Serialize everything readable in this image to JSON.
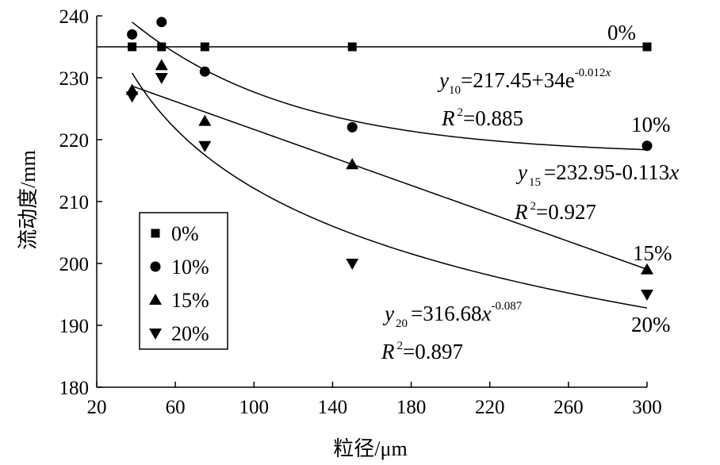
{
  "chart_data": {
    "type": "scatter",
    "xlabel": "粒径/μm",
    "ylabel": "流动度/mm",
    "xlim": [
      20,
      300
    ],
    "ylim": [
      180,
      240
    ],
    "xticks": [
      20,
      60,
      100,
      140,
      180,
      220,
      260,
      300
    ],
    "yticks": [
      180,
      190,
      200,
      210,
      220,
      230,
      240
    ],
    "grid": false,
    "legend_position": "bottom-left",
    "series": [
      {
        "name": "0%",
        "marker": "square",
        "x": [
          38,
          53,
          75,
          150,
          300
        ],
        "y": [
          235,
          235,
          235,
          235,
          235
        ]
      },
      {
        "name": "10%",
        "marker": "circle",
        "x": [
          38,
          53,
          75,
          150,
          300
        ],
        "y": [
          237,
          239,
          231,
          222,
          219
        ]
      },
      {
        "name": "15%",
        "marker": "triangle-up",
        "x": [
          38,
          53,
          75,
          150,
          300
        ],
        "y": [
          228,
          232,
          223,
          216,
          199
        ]
      },
      {
        "name": "20%",
        "marker": "triangle-down",
        "x": [
          38,
          53,
          75,
          150,
          300
        ],
        "y": [
          227,
          230,
          219,
          200,
          195
        ]
      }
    ],
    "fits": [
      {
        "series": "0%",
        "model": "constant",
        "value": 235
      },
      {
        "series": "10%",
        "model": "exponential",
        "a": 217.45,
        "b": 34,
        "k": -0.012,
        "eq_y": "y",
        "eq_sub": "10",
        "eq_body": "=217.45+34e",
        "eq_sup": "-0.012",
        "eq_sup_var": "x",
        "r2_label": "R",
        "r2_sup": "2",
        "r2_value": "=0.885"
      },
      {
        "series": "15%",
        "model": "linear",
        "a": 232.95,
        "b": -0.113,
        "eq_y": "y",
        "eq_sub": "15",
        "eq_body": "=232.95-0.113",
        "eq_var": "x",
        "r2_label": "R",
        "r2_sup": "2",
        "r2_value": "=0.927"
      },
      {
        "series": "20%",
        "model": "power",
        "a": 316.68,
        "b": -0.087,
        "eq_y": "y",
        "eq_sub": "20",
        "eq_body": "=316.68",
        "eq_var": "x",
        "eq_sup": "-0.087",
        "r2_label": "R",
        "r2_sup": "2",
        "r2_value": "=0.897"
      }
    ],
    "series_tags": [
      "0%",
      "10%",
      "15%",
      "20%"
    ],
    "legend": [
      "0%",
      "10%",
      "15%",
      "20%"
    ]
  }
}
